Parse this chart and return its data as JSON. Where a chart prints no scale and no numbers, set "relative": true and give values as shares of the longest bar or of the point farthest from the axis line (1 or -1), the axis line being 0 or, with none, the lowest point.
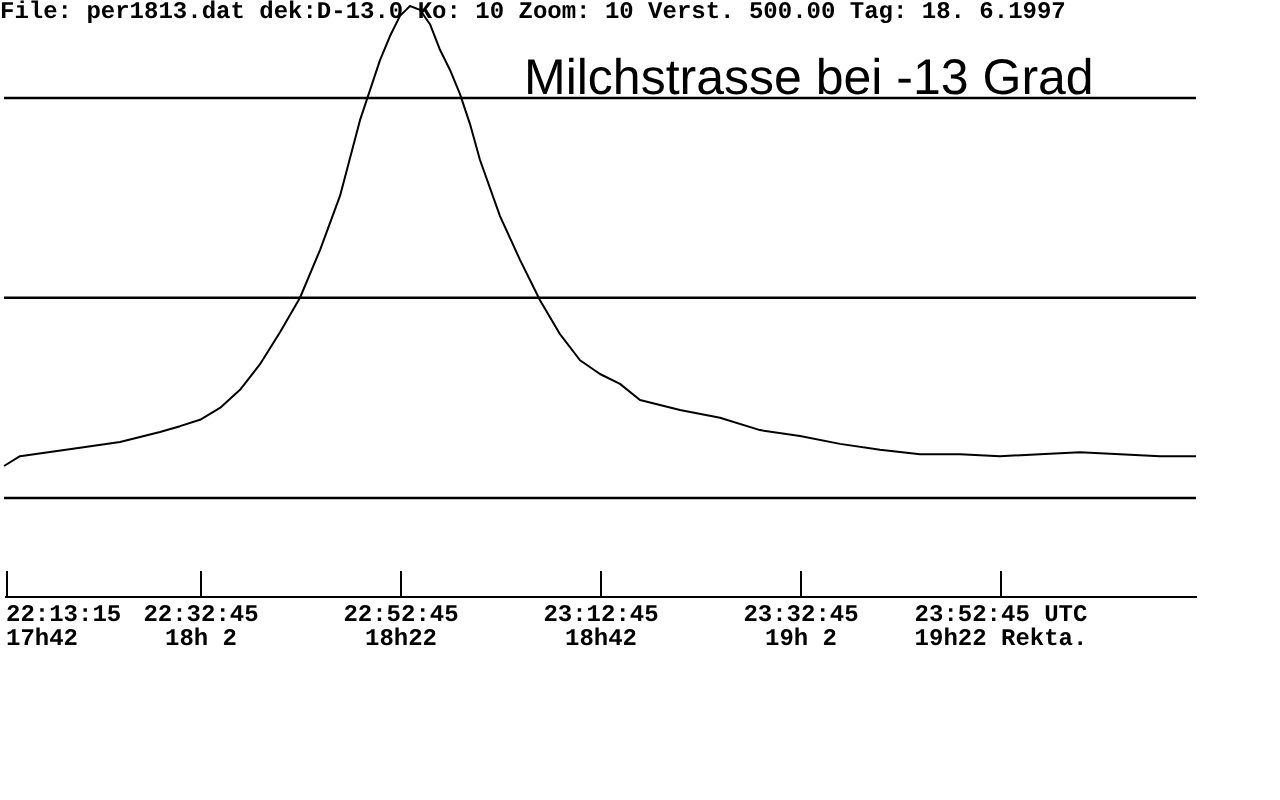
{
  "chart_data": {
    "type": "line",
    "title": "Milchstrasse bei -13 Grad",
    "relative": true,
    "annotations": [
      "File: per1813.dat dek:D-13.0 Ko:   10 Zoom: 10 Verst. 500.00 Tag: 18. 6.1997"
    ],
    "x": [
      "1997-06-18T22:13:09",
      "1997-06-18T22:14:45",
      "1997-06-18T22:20:45",
      "1997-06-18T22:24:45",
      "1997-06-18T22:28:45",
      "1997-06-18T22:30:45",
      "1997-06-18T22:32:45",
      "1997-06-18T22:34:45",
      "1997-06-18T22:36:45",
      "1997-06-18T22:38:45",
      "1997-06-18T22:40:45",
      "1997-06-18T22:42:45",
      "1997-06-18T22:44:45",
      "1997-06-18T22:46:45",
      "1997-06-18T22:48:45",
      "1997-06-18T22:49:45",
      "1997-06-18T22:50:45",
      "1997-06-18T22:51:45",
      "1997-06-18T22:52:45",
      "1997-06-18T22:53:45",
      "1997-06-18T22:54:45",
      "1997-06-18T22:55:45",
      "1997-06-18T22:56:45",
      "1997-06-18T22:57:45",
      "1997-06-18T22:58:45",
      "1997-06-18T22:59:45",
      "1997-06-18T23:00:45",
      "1997-06-18T23:02:45",
      "1997-06-18T23:04:45",
      "1997-06-18T23:06:45",
      "1997-06-18T23:08:45",
      "1997-06-18T23:10:45",
      "1997-06-18T23:12:45",
      "1997-06-18T23:14:45",
      "1997-06-18T23:16:45",
      "1997-06-18T23:20:45",
      "1997-06-18T23:24:45",
      "1997-06-18T23:28:45",
      "1997-06-18T23:32:45",
      "1997-06-18T23:36:45",
      "1997-06-18T23:40:45",
      "1997-06-18T23:44:45",
      "1997-06-18T23:48:45",
      "1997-06-18T23:52:45",
      "1997-06-18T23:56:45",
      "1997-06-19T00:00:45",
      "1997-06-19T00:04:45",
      "1997-06-19T00:08:45",
      "1997-06-19T00:12:21"
    ],
    "series": [
      {
        "color": "#000000",
        "values": [
          0.065,
          0.085,
          0.102,
          0.114,
          0.134,
          0.146,
          0.159,
          0.183,
          0.22,
          0.272,
          0.337,
          0.407,
          0.504,
          0.614,
          0.768,
          0.829,
          0.89,
          0.939,
          0.98,
          1,
          0.992,
          0.963,
          0.911,
          0.87,
          0.821,
          0.76,
          0.687,
          0.573,
          0.484,
          0.402,
          0.333,
          0.28,
          0.252,
          0.232,
          0.199,
          0.179,
          0.163,
          0.138,
          0.126,
          0.11,
          0.098,
          0.089,
          0.089,
          0.085,
          0.089,
          0.093,
          0.089,
          0.085,
          0.085
        ]
      }
    ],
    "xlim": [
      "1997-06-18T22:13:09",
      "1997-06-19T00:12:21"
    ],
    "xticks": [
      {
        "value": "1997-06-18T22:13:15",
        "label": "22:13:15\n17h42"
      },
      {
        "value": "1997-06-18T22:32:45",
        "label": "22:32:45\n18h 2"
      },
      {
        "value": "1997-06-18T22:52:45",
        "label": "22:52:45\n18h22"
      },
      {
        "value": "1997-06-18T23:12:45",
        "label": "23:12:45\n18h42"
      },
      {
        "value": "1997-06-18T23:32:45",
        "label": "23:32:45\n19h 2"
      },
      {
        "value": "1997-06-18T23:52:45",
        "label": "23:52:45 UTC\n19h22 Rekta."
      }
    ],
    "ref_lines": [
      {
        "axis": "y",
        "value": 0,
        "color": "#000000"
      },
      {
        "axis": "y",
        "value": 0.407,
        "color": "#000000"
      },
      {
        "axis": "y",
        "value": 0.813,
        "color": "#000000"
      }
    ]
  }
}
